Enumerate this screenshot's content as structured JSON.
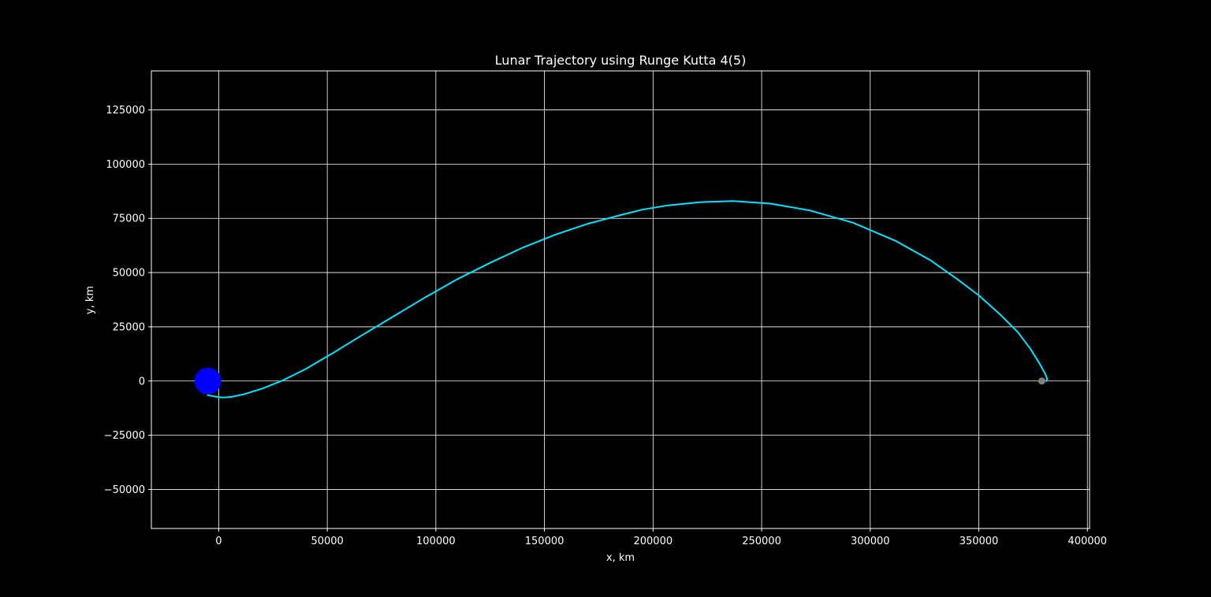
{
  "colors": {
    "background": "#000000",
    "foreground": "#ffffff",
    "grid": "#ffffff",
    "trajectory": "#00e5ff",
    "earth": "#0000ff",
    "moon": "#808080"
  },
  "chart_data": {
    "type": "line",
    "title": "Lunar Trajectory using Runge Kutta 4(5)",
    "xlabel": "x, km",
    "ylabel": "y, km",
    "xlim": [
      -31000,
      401000
    ],
    "ylim": [
      -68000,
      143000
    ],
    "grid": true,
    "xticks": [
      0,
      50000,
      100000,
      150000,
      200000,
      250000,
      300000,
      350000,
      400000
    ],
    "xtick_labels": [
      "0",
      "50000",
      "100000",
      "150000",
      "200000",
      "250000",
      "300000",
      "350000",
      "400000"
    ],
    "yticks": [
      -50000,
      -25000,
      0,
      25000,
      50000,
      75000,
      100000,
      125000
    ],
    "ytick_labels": [
      "−50000",
      "−25000",
      "0",
      "25000",
      "50000",
      "75000",
      "100000",
      "125000"
    ],
    "series": [
      {
        "type": "line",
        "x": [
          -5000,
          -1500,
          2000,
          6000,
          12000,
          20000,
          30000,
          40000,
          52000,
          65000,
          80000,
          95000,
          110000,
          125000,
          140000,
          155000,
          170000,
          185000,
          195000,
          207000,
          222000,
          237000,
          254000,
          272000,
          292000,
          312000,
          328000,
          340000,
          350000,
          360000,
          368000,
          374000,
          378000,
          380500,
          381500,
          381000
        ],
        "y": [
          -6500,
          -7200,
          -7600,
          -7300,
          -6000,
          -3500,
          500,
          5500,
          12500,
          20500,
          29500,
          38500,
          47000,
          54500,
          61500,
          67500,
          72500,
          76500,
          79000,
          81000,
          82500,
          83000,
          81800,
          78700,
          73000,
          64500,
          55500,
          47000,
          39500,
          30500,
          22500,
          14500,
          8000,
          3500,
          1000,
          0
        ]
      },
      {
        "type": "scatter",
        "x": [
          -5000
        ],
        "y": [
          0
        ]
      },
      {
        "type": "scatter",
        "x": [
          379000
        ],
        "y": [
          0
        ]
      }
    ]
  }
}
